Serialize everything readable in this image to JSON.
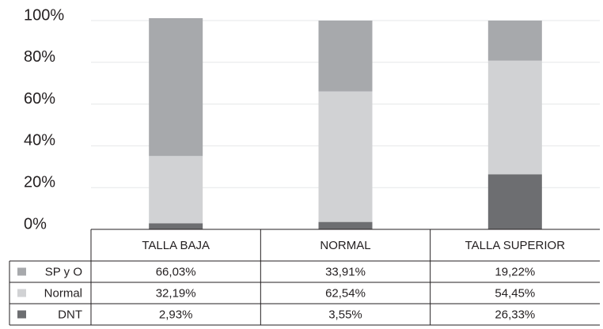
{
  "chart_data": {
    "type": "bar",
    "stacked": true,
    "percent_stacked": true,
    "categories": [
      "TALLA BAJA",
      "NORMAL",
      "TALLA SUPERIOR"
    ],
    "series": [
      {
        "name": "DNT",
        "values": [
          2.93,
          3.55,
          26.33
        ],
        "labels": [
          "2,93%",
          "3,55%",
          "26,33%"
        ],
        "color": "#6d6e71"
      },
      {
        "name": "Normal",
        "values": [
          32.19,
          62.54,
          54.45
        ],
        "labels": [
          "32,19%",
          "62,54%",
          "54,45%"
        ],
        "color": "#d1d2d4"
      },
      {
        "name": "SP y O",
        "values": [
          66.03,
          33.91,
          19.22
        ],
        "labels": [
          "66,03%",
          "33,91%",
          "19,22%"
        ],
        "color": "#a7a9ac"
      }
    ],
    "table_rows": [
      "SP y O",
      "Normal",
      "DNT"
    ],
    "y_ticks": [
      "0%",
      "20%",
      "40%",
      "60%",
      "80%",
      "100%"
    ],
    "ylim": [
      0,
      100
    ],
    "grid": true,
    "legend": "data-table"
  }
}
